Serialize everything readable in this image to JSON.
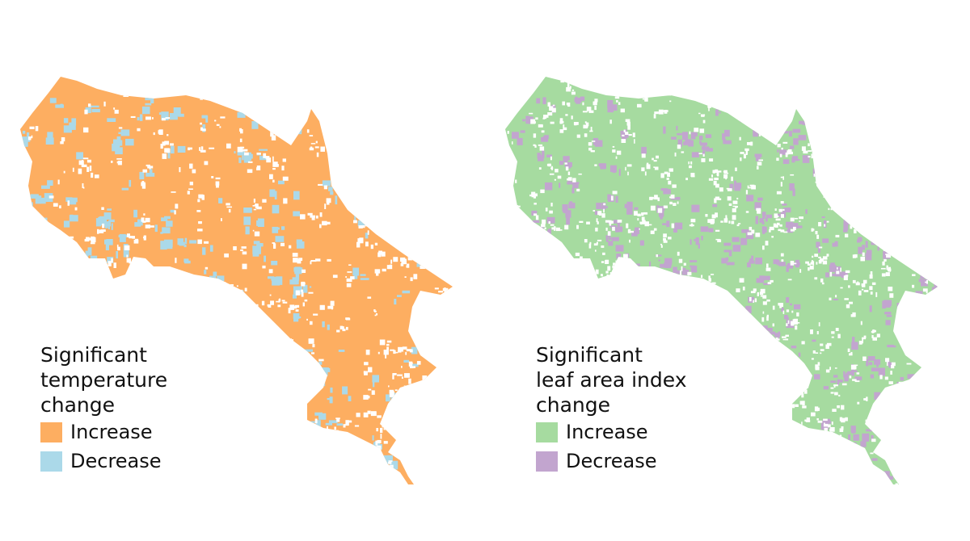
{
  "maps": [
    {
      "legend": {
        "title_lines": [
          "Significant",
          "temperature",
          "change"
        ],
        "items": [
          {
            "label": "Increase",
            "color": "#fdae61"
          },
          {
            "label": "Decrease",
            "color": "#abd9e9"
          }
        ]
      },
      "dominant_category": "Increase",
      "minority_category": "Decrease",
      "blank_color": "#ffffff"
    },
    {
      "legend": {
        "title_lines": [
          "Significant",
          "leaf area index",
          "change"
        ],
        "items": [
          {
            "label": "Increase",
            "color": "#a6dba0"
          },
          {
            "label": "Decrease",
            "color": "#c2a5cf"
          }
        ]
      },
      "dominant_category": "Increase",
      "minority_category": "Decrease",
      "blank_color": "#ffffff"
    }
  ]
}
